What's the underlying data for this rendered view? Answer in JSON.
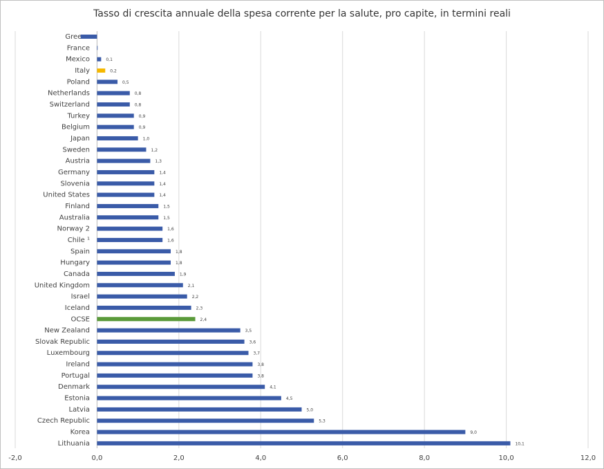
{
  "chart_data": {
    "type": "hbar",
    "title": "Tasso di crescita annuale della spesa corrente per la salute, pro capite, in termini reali",
    "categories": [
      "Greece",
      "France",
      "Mexico",
      "Italy",
      "Poland",
      "Netherlands",
      "Switzerland",
      "Turkey",
      "Belgium",
      "Japan",
      "Sweden",
      "Austria",
      "Germany",
      "Slovenia",
      "United States",
      "Finland",
      "Australia",
      "Norway 2",
      "Chile ¹",
      "Spain",
      "Hungary",
      "Canada",
      "United Kingdom",
      "Israel",
      "Iceland",
      "OCSE",
      "New Zealand",
      "Slovak Republic",
      "Luxembourg",
      "Ireland",
      "Portugal",
      "Denmark",
      "Estonia",
      "Latvia",
      "Czech Republic",
      "Korea",
      "Lithuania"
    ],
    "values": [
      -0.4,
      0.0,
      0.1,
      0.2,
      0.5,
      0.8,
      0.8,
      0.9,
      0.9,
      1.0,
      1.2,
      1.3,
      1.4,
      1.4,
      1.4,
      1.5,
      1.5,
      1.6,
      1.6,
      1.8,
      1.8,
      1.9,
      2.1,
      2.2,
      2.3,
      2.4,
      3.5,
      3.6,
      3.7,
      3.8,
      3.8,
      4.1,
      4.5,
      5.0,
      5.3,
      9.0,
      10.1
    ],
    "value_labels": [
      null,
      null,
      "0,1",
      "0,2",
      "0,5",
      "0,8",
      "0,8",
      "0,9",
      "0,9",
      "1,0",
      "1,2",
      "1,3",
      "1,4",
      "1,4",
      "1,4",
      "1,5",
      "1,5",
      "1,6",
      "1,6",
      "1,8",
      "1,8",
      "1,9",
      "2,1",
      "2,2",
      "2,3",
      "2,4",
      "3,5",
      "3,6",
      "3,7",
      "3,8",
      "3,8",
      "4,1",
      "4,5",
      "5,0",
      "5,3",
      "9,0",
      "10,1"
    ],
    "colors": [
      "#3a5ba8",
      "#3a5ba8",
      "#3a5ba8",
      "#f5b800",
      "#3a5ba8",
      "#3a5ba8",
      "#3a5ba8",
      "#3a5ba8",
      "#3a5ba8",
      "#3a5ba8",
      "#3a5ba8",
      "#3a5ba8",
      "#3a5ba8",
      "#3a5ba8",
      "#3a5ba8",
      "#3a5ba8",
      "#3a5ba8",
      "#3a5ba8",
      "#3a5ba8",
      "#3a5ba8",
      "#3a5ba8",
      "#3a5ba8",
      "#3a5ba8",
      "#3a5ba8",
      "#3a5ba8",
      "#5a9a3a",
      "#3a5ba8",
      "#3a5ba8",
      "#3a5ba8",
      "#3a5ba8",
      "#3a5ba8",
      "#3a5ba8",
      "#3a5ba8",
      "#3a5ba8",
      "#3a5ba8",
      "#3a5ba8",
      "#3a5ba8"
    ],
    "xlim": [
      -2,
      12
    ],
    "xticks": [
      {
        "value": -2,
        "label": "-2,0"
      },
      {
        "value": 0,
        "label": "0,0"
      },
      {
        "value": 2,
        "label": "2,0"
      },
      {
        "value": 4,
        "label": "4,0"
      },
      {
        "value": 6,
        "label": "6,0"
      },
      {
        "value": 8,
        "label": "8,0"
      },
      {
        "value": 10,
        "label": "10,0"
      },
      {
        "value": 12,
        "label": "12,0"
      }
    ],
    "grid": true
  }
}
